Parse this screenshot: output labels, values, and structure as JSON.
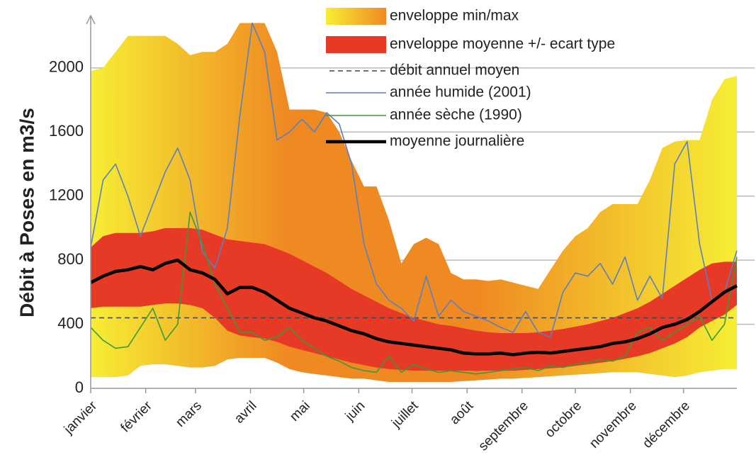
{
  "chart_data": {
    "type": "line",
    "y_label": "Débit à Poses en m3/s",
    "xlim": [
      1,
      365
    ],
    "ylim": [
      0,
      2300
    ],
    "yticks": [
      0,
      400,
      800,
      1200,
      1600,
      2000
    ],
    "xticks": [
      {
        "value": 1,
        "label": "janvier"
      },
      {
        "value": 32,
        "label": "février"
      },
      {
        "value": 60,
        "label": "mars"
      },
      {
        "value": 91,
        "label": "avril"
      },
      {
        "value": 121,
        "label": "mai"
      },
      {
        "value": 152,
        "label": "juin"
      },
      {
        "value": 182,
        "label": "juillet"
      },
      {
        "value": 213,
        "label": "août"
      },
      {
        "value": 244,
        "label": "septembre"
      },
      {
        "value": 274,
        "label": "octobre"
      },
      {
        "value": 305,
        "label": "novembre"
      },
      {
        "value": 335,
        "label": "décembre"
      }
    ],
    "grid": true,
    "x": [
      1,
      8,
      15,
      22,
      29,
      36,
      43,
      50,
      57,
      64,
      71,
      78,
      85,
      92,
      99,
      106,
      113,
      120,
      127,
      134,
      141,
      148,
      155,
      162,
      169,
      176,
      183,
      190,
      197,
      204,
      211,
      218,
      225,
      232,
      239,
      246,
      253,
      260,
      267,
      274,
      281,
      288,
      295,
      302,
      309,
      316,
      323,
      330,
      337,
      344,
      351,
      358,
      365
    ],
    "series": [
      {
        "name": "enveloppe min/max",
        "colors": [
          "#f6ee34",
          "#ef8a22"
        ],
        "upper": [
          1980,
          2000,
          2100,
          2200,
          2200,
          2200,
          2200,
          2150,
          2080,
          2100,
          2100,
          2150,
          2280,
          2280,
          2280,
          2100,
          1740,
          1740,
          1740,
          1720,
          1600,
          1420,
          1260,
          1260,
          1050,
          780,
          900,
          940,
          900,
          720,
          680,
          680,
          670,
          680,
          660,
          640,
          620,
          740,
          860,
          950,
          1000,
          1100,
          1150,
          1150,
          1150,
          1300,
          1500,
          1540,
          1550,
          1550,
          1800,
          1930,
          1950
        ],
        "lower": [
          70,
          70,
          70,
          80,
          140,
          150,
          150,
          140,
          130,
          130,
          140,
          180,
          190,
          190,
          190,
          160,
          120,
          100,
          90,
          80,
          70,
          60,
          60,
          50,
          40,
          40,
          40,
          40,
          40,
          40,
          45,
          50,
          55,
          60,
          60,
          65,
          70,
          75,
          80,
          85,
          90,
          95,
          100,
          100,
          100,
          90,
          80,
          70,
          80,
          100,
          110,
          120,
          120
        ]
      },
      {
        "name": "enveloppe moyenne +/- ecart type",
        "color": "#e63a26",
        "upper": [
          880,
          950,
          970,
          970,
          970,
          980,
          1000,
          1000,
          1000,
          990,
          960,
          930,
          920,
          910,
          900,
          870,
          840,
          800,
          760,
          720,
          670,
          620,
          580,
          540,
          500,
          470,
          440,
          420,
          400,
          390,
          375,
          360,
          350,
          345,
          345,
          345,
          350,
          360,
          370,
          385,
          400,
          420,
          440,
          470,
          500,
          540,
          590,
          640,
          690,
          740,
          780,
          790,
          790
        ],
        "lower": [
          500,
          510,
          510,
          510,
          510,
          520,
          530,
          530,
          520,
          500,
          440,
          360,
          330,
          320,
          310,
          290,
          260,
          240,
          220,
          200,
          180,
          160,
          145,
          130,
          120,
          115,
          110,
          110,
          110,
          110,
          110,
          110,
          110,
          110,
          110,
          115,
          120,
          125,
          130,
          140,
          150,
          160,
          170,
          185,
          200,
          220,
          250,
          280,
          320,
          380,
          420,
          460,
          520
        ]
      },
      {
        "name": "débit annuel moyen",
        "color": "#444444",
        "value": 440
      },
      {
        "name": "année humide (2001)",
        "color": "#5b7fc4",
        "values": [
          880,
          1300,
          1400,
          1200,
          950,
          1150,
          1350,
          1500,
          1300,
          850,
          750,
          1000,
          1700,
          2280,
          2100,
          1550,
          1600,
          1680,
          1600,
          1720,
          1650,
          1400,
          900,
          650,
          550,
          500,
          420,
          700,
          450,
          550,
          480,
          450,
          420,
          380,
          350,
          480,
          350,
          320,
          600,
          720,
          700,
          780,
          650,
          820,
          550,
          700,
          560,
          1400,
          1540,
          900,
          550,
          600,
          860
        ]
      },
      {
        "name": "année sèche (1990)",
        "color": "#3a9a3a",
        "values": [
          380,
          300,
          250,
          260,
          380,
          500,
          300,
          400,
          1100,
          900,
          650,
          500,
          350,
          350,
          300,
          320,
          380,
          300,
          250,
          200,
          170,
          130,
          110,
          100,
          200,
          100,
          150,
          120,
          100,
          110,
          100,
          90,
          100,
          110,
          120,
          130,
          110,
          140,
          130,
          150,
          160,
          180,
          170,
          200,
          350,
          380,
          300,
          350,
          400,
          450,
          300,
          400,
          820
        ]
      },
      {
        "name": "moyenne journalière",
        "color": "#000000",
        "values": [
          660,
          700,
          730,
          740,
          760,
          740,
          780,
          800,
          740,
          720,
          680,
          590,
          630,
          630,
          600,
          550,
          500,
          470,
          440,
          420,
          390,
          360,
          340,
          310,
          290,
          280,
          270,
          260,
          250,
          240,
          220,
          215,
          215,
          220,
          210,
          220,
          225,
          220,
          230,
          240,
          250,
          260,
          280,
          290,
          310,
          340,
          380,
          400,
          430,
          480,
          540,
          600,
          640
        ]
      }
    ]
  }
}
